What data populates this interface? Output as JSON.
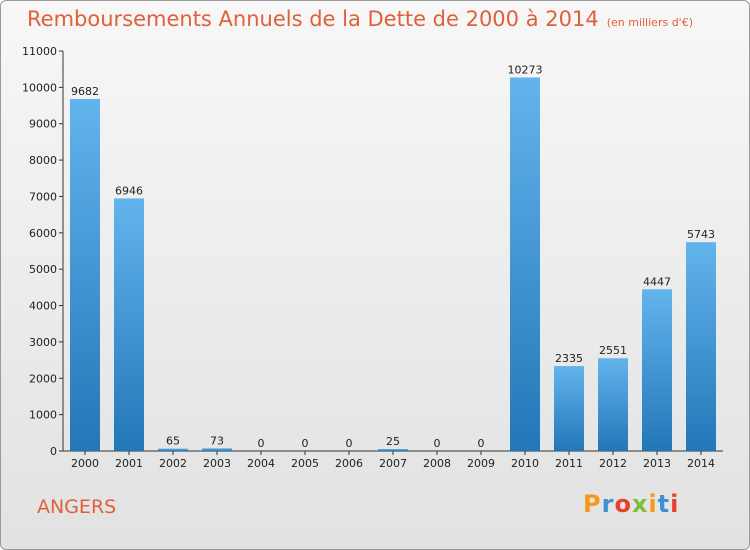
{
  "header": {
    "title": "Remboursements Annuels de la Dette de 2000 à 2014",
    "unit": "(en milliers d'€)"
  },
  "footer": {
    "place": "ANGERS",
    "logo": [
      "P",
      "r",
      "o",
      "x",
      "i",
      "t",
      "i"
    ]
  },
  "colors": {
    "title": "#e0603a",
    "bar_top": "#62b4ec",
    "bar_bottom": "#2277b9"
  },
  "chart_data": {
    "type": "bar",
    "title": "Remboursements Annuels de la Dette de 2000 à 2014",
    "xlabel": "",
    "ylabel": "",
    "categories": [
      "2000",
      "2001",
      "2002",
      "2003",
      "2004",
      "2005",
      "2006",
      "2007",
      "2008",
      "2009",
      "2010",
      "2011",
      "2012",
      "2013",
      "2014"
    ],
    "values": [
      9682,
      6946,
      65,
      73,
      0,
      0,
      0,
      25,
      0,
      0,
      10273,
      2335,
      2551,
      4447,
      5743
    ],
    "ylim": [
      0,
      11000
    ],
    "yticks": [
      0,
      1000,
      2000,
      3000,
      4000,
      5000,
      6000,
      7000,
      8000,
      9000,
      10000,
      11000
    ],
    "grid": false,
    "legend": "none"
  }
}
